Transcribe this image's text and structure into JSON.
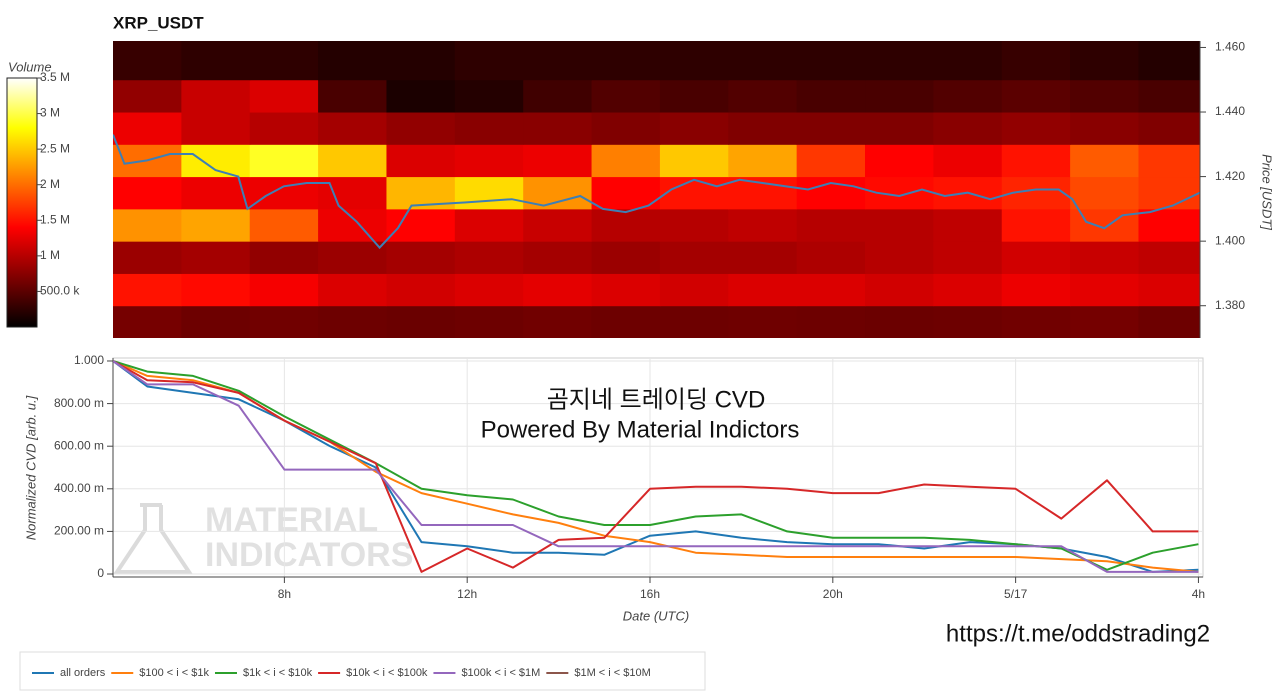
{
  "chart_data": [
    {
      "type": "heatmap",
      "title": "XRP_USDT",
      "y2label": "Price [USDT]",
      "colorbar_label": "Volume",
      "xlim": [
        4.25,
        28.1
      ],
      "ylim": [
        1.37,
        1.462
      ],
      "yticks": [
        {
          "value": 1.46,
          "label": "1.460"
        },
        {
          "value": 1.44,
          "label": "1.440"
        },
        {
          "value": 1.42,
          "label": "1.420"
        },
        {
          "value": 1.4,
          "label": "1.400"
        },
        {
          "value": 1.38,
          "label": "1.380"
        }
      ],
      "zlim": [
        0,
        3500000
      ],
      "zticks": [
        {
          "value": 3500000,
          "label": "3.5 M"
        },
        {
          "value": 3000000,
          "label": "3 M"
        },
        {
          "value": 2500000,
          "label": "2.5 M"
        },
        {
          "value": 2000000,
          "label": "2 M"
        },
        {
          "value": 1500000,
          "label": "1.5 M"
        },
        {
          "value": 1000000,
          "label": "1 M"
        },
        {
          "value": 500000,
          "label": "500.0 k"
        }
      ],
      "x_bins": [
        4.25,
        5.75,
        7.25,
        8.75,
        10.25,
        11.75,
        13.25,
        14.75,
        16.25,
        17.75,
        19.25,
        20.75,
        22.25,
        23.75,
        25.25,
        26.75,
        28.25
      ],
      "y_bins": [
        1.37,
        1.38,
        1.39,
        1.4,
        1.41,
        1.42,
        1.43,
        1.44,
        1.45,
        1.462
      ],
      "z": [
        [
          650000,
          600000,
          620000,
          600000,
          580000,
          600000,
          620000,
          600000,
          600000,
          610000,
          600000,
          590000,
          600000,
          620000,
          640000,
          600000
        ],
        [
          1500000,
          1450000,
          1350000,
          1200000,
          1150000,
          1200000,
          1250000,
          1200000,
          1150000,
          1200000,
          1200000,
          1150000,
          1200000,
          1300000,
          1250000,
          1200000
        ],
        [
          850000,
          900000,
          800000,
          850000,
          900000,
          950000,
          900000,
          850000,
          900000,
          900000,
          950000,
          1000000,
          1050000,
          1150000,
          1100000,
          1050000
        ],
        [
          2200000,
          2300000,
          1900000,
          1300000,
          1400000,
          1200000,
          1100000,
          1000000,
          1000000,
          1050000,
          1000000,
          1000000,
          1050000,
          1500000,
          1700000,
          1400000
        ],
        [
          1400000,
          1300000,
          1300000,
          1250000,
          2400000,
          2600000,
          2200000,
          1400000,
          1500000,
          1500000,
          1400000,
          1450000,
          1500000,
          1600000,
          1800000,
          1700000
        ],
        [
          2000000,
          2700000,
          2900000,
          2500000,
          1200000,
          1250000,
          1300000,
          2100000,
          2500000,
          2300000,
          1700000,
          1400000,
          1300000,
          1500000,
          1900000,
          1700000
        ],
        [
          1300000,
          1100000,
          1000000,
          900000,
          800000,
          750000,
          750000,
          700000,
          750000,
          700000,
          700000,
          700000,
          750000,
          800000,
          750000,
          700000
        ],
        [
          800000,
          1100000,
          1200000,
          400000,
          150000,
          200000,
          350000,
          450000,
          400000,
          450000,
          400000,
          400000,
          450000,
          500000,
          450000,
          400000
        ],
        [
          300000,
          250000,
          250000,
          200000,
          200000,
          250000,
          250000,
          250000,
          250000,
          250000,
          250000,
          250000,
          250000,
          300000,
          250000,
          200000
        ]
      ],
      "price": {
        "color": "#3d7fb5",
        "x": [
          4.25,
          4.5,
          5,
          5.5,
          6,
          6.5,
          7,
          7.2,
          7.6,
          8,
          8.5,
          9,
          9.2,
          9.6,
          10.1,
          10.5,
          10.8,
          12,
          13,
          13.7,
          14.5,
          15,
          15.5,
          16,
          16.5,
          17,
          17.5,
          18,
          18.5,
          19,
          19.5,
          20,
          20.5,
          21,
          21.5,
          22,
          22.5,
          23,
          23.5,
          24,
          24.5,
          25,
          25.3,
          25.6,
          26,
          26.4,
          27,
          27.5,
          28.1
        ],
        "values": [
          1.433,
          1.424,
          1.425,
          1.427,
          1.427,
          1.422,
          1.42,
          1.41,
          1.414,
          1.417,
          1.418,
          1.418,
          1.411,
          1.406,
          1.398,
          1.404,
          1.411,
          1.412,
          1.413,
          1.411,
          1.414,
          1.41,
          1.409,
          1.411,
          1.416,
          1.419,
          1.417,
          1.419,
          1.418,
          1.417,
          1.416,
          1.418,
          1.417,
          1.415,
          1.414,
          1.416,
          1.414,
          1.415,
          1.413,
          1.415,
          1.416,
          1.416,
          1.413,
          1.406,
          1.404,
          1.408,
          1.409,
          1.411,
          1.415
        ]
      }
    },
    {
      "type": "line",
      "ylabel": "Normalized CVD [arb. u.]",
      "xlabel": "Date (UTC)",
      "annotations": [
        "곰지네 트레이딩 CVD",
        "Powered By Material Indictors",
        "https://t.me/oddstrading2"
      ],
      "watermark": [
        "MATERIAL",
        "INDICATORS"
      ],
      "xlim": [
        4.25,
        28.1
      ],
      "ylim": [
        -0.014,
        1.014
      ],
      "grid": true,
      "xticks": [
        {
          "value": 8,
          "label": "8h"
        },
        {
          "value": 12,
          "label": "12h"
        },
        {
          "value": 16,
          "label": "16h"
        },
        {
          "value": 20,
          "label": "20h"
        },
        {
          "value": 24,
          "label": "5/17"
        },
        {
          "value": 28,
          "label": "4h"
        }
      ],
      "yticks": [
        0,
        {
          "value": 0.2,
          "label": "200.00 m"
        },
        {
          "value": 0.4,
          "label": "400.00 m"
        },
        {
          "value": 0.6,
          "label": "600.00 m"
        },
        {
          "value": 0.8,
          "label": "800.00 m"
        },
        {
          "value": 1,
          "label": "1.000"
        }
      ],
      "x": [
        4.25,
        5,
        6,
        7,
        8,
        9,
        10,
        11,
        12,
        13,
        14,
        15,
        16,
        17,
        18,
        19,
        20,
        21,
        22,
        23,
        24,
        25,
        26,
        27,
        28
      ],
      "series": [
        {
          "name": "all orders",
          "color": "#1f77b4",
          "values": [
            1.0,
            0.88,
            0.85,
            0.82,
            0.72,
            0.6,
            0.5,
            0.15,
            0.13,
            0.1,
            0.1,
            0.09,
            0.18,
            0.2,
            0.17,
            0.15,
            0.14,
            0.14,
            0.12,
            0.15,
            0.14,
            0.12,
            0.08,
            0.01,
            0.02
          ]
        },
        {
          "name": "$100 < i < $1k",
          "color": "#ff7f0e",
          "values": [
            1.0,
            0.93,
            0.91,
            0.85,
            0.72,
            0.62,
            0.48,
            0.38,
            0.33,
            0.28,
            0.24,
            0.18,
            0.15,
            0.1,
            0.09,
            0.08,
            0.08,
            0.08,
            0.08,
            0.08,
            0.08,
            0.07,
            0.06,
            0.03,
            0.01
          ]
        },
        {
          "name": "$1k < i < $10k",
          "color": "#2ca02c",
          "values": [
            1.0,
            0.95,
            0.93,
            0.86,
            0.74,
            0.63,
            0.52,
            0.4,
            0.37,
            0.35,
            0.27,
            0.23,
            0.23,
            0.27,
            0.28,
            0.2,
            0.17,
            0.17,
            0.17,
            0.16,
            0.14,
            0.12,
            0.02,
            0.1,
            0.14
          ]
        },
        {
          "name": "$10k < i < $100k",
          "color": "#d62728",
          "values": [
            1.0,
            0.91,
            0.9,
            0.85,
            0.72,
            0.62,
            0.52,
            0.01,
            0.12,
            0.03,
            0.16,
            0.17,
            0.4,
            0.41,
            0.41,
            0.4,
            0.38,
            0.38,
            0.42,
            0.41,
            0.4,
            0.26,
            0.44,
            0.2,
            0.2
          ]
        },
        {
          "name": "$100k < i < $1M",
          "color": "#9467bd",
          "values": [
            1.0,
            0.89,
            0.89,
            0.79,
            0.49,
            0.49,
            0.49,
            0.23,
            0.23,
            0.23,
            0.13,
            0.13,
            0.13,
            0.13,
            0.13,
            0.13,
            0.13,
            0.13,
            0.13,
            0.13,
            0.13,
            0.13,
            0.01,
            0.01,
            0.01
          ]
        },
        {
          "name": "$1M < i < $10M",
          "color": "#8c564b",
          "values": [
            null,
            null,
            null,
            null,
            null,
            null,
            null,
            null,
            null,
            null,
            null,
            null,
            null,
            null,
            null,
            null,
            null,
            null,
            null,
            null,
            null,
            null,
            null,
            null,
            null
          ]
        }
      ]
    }
  ]
}
